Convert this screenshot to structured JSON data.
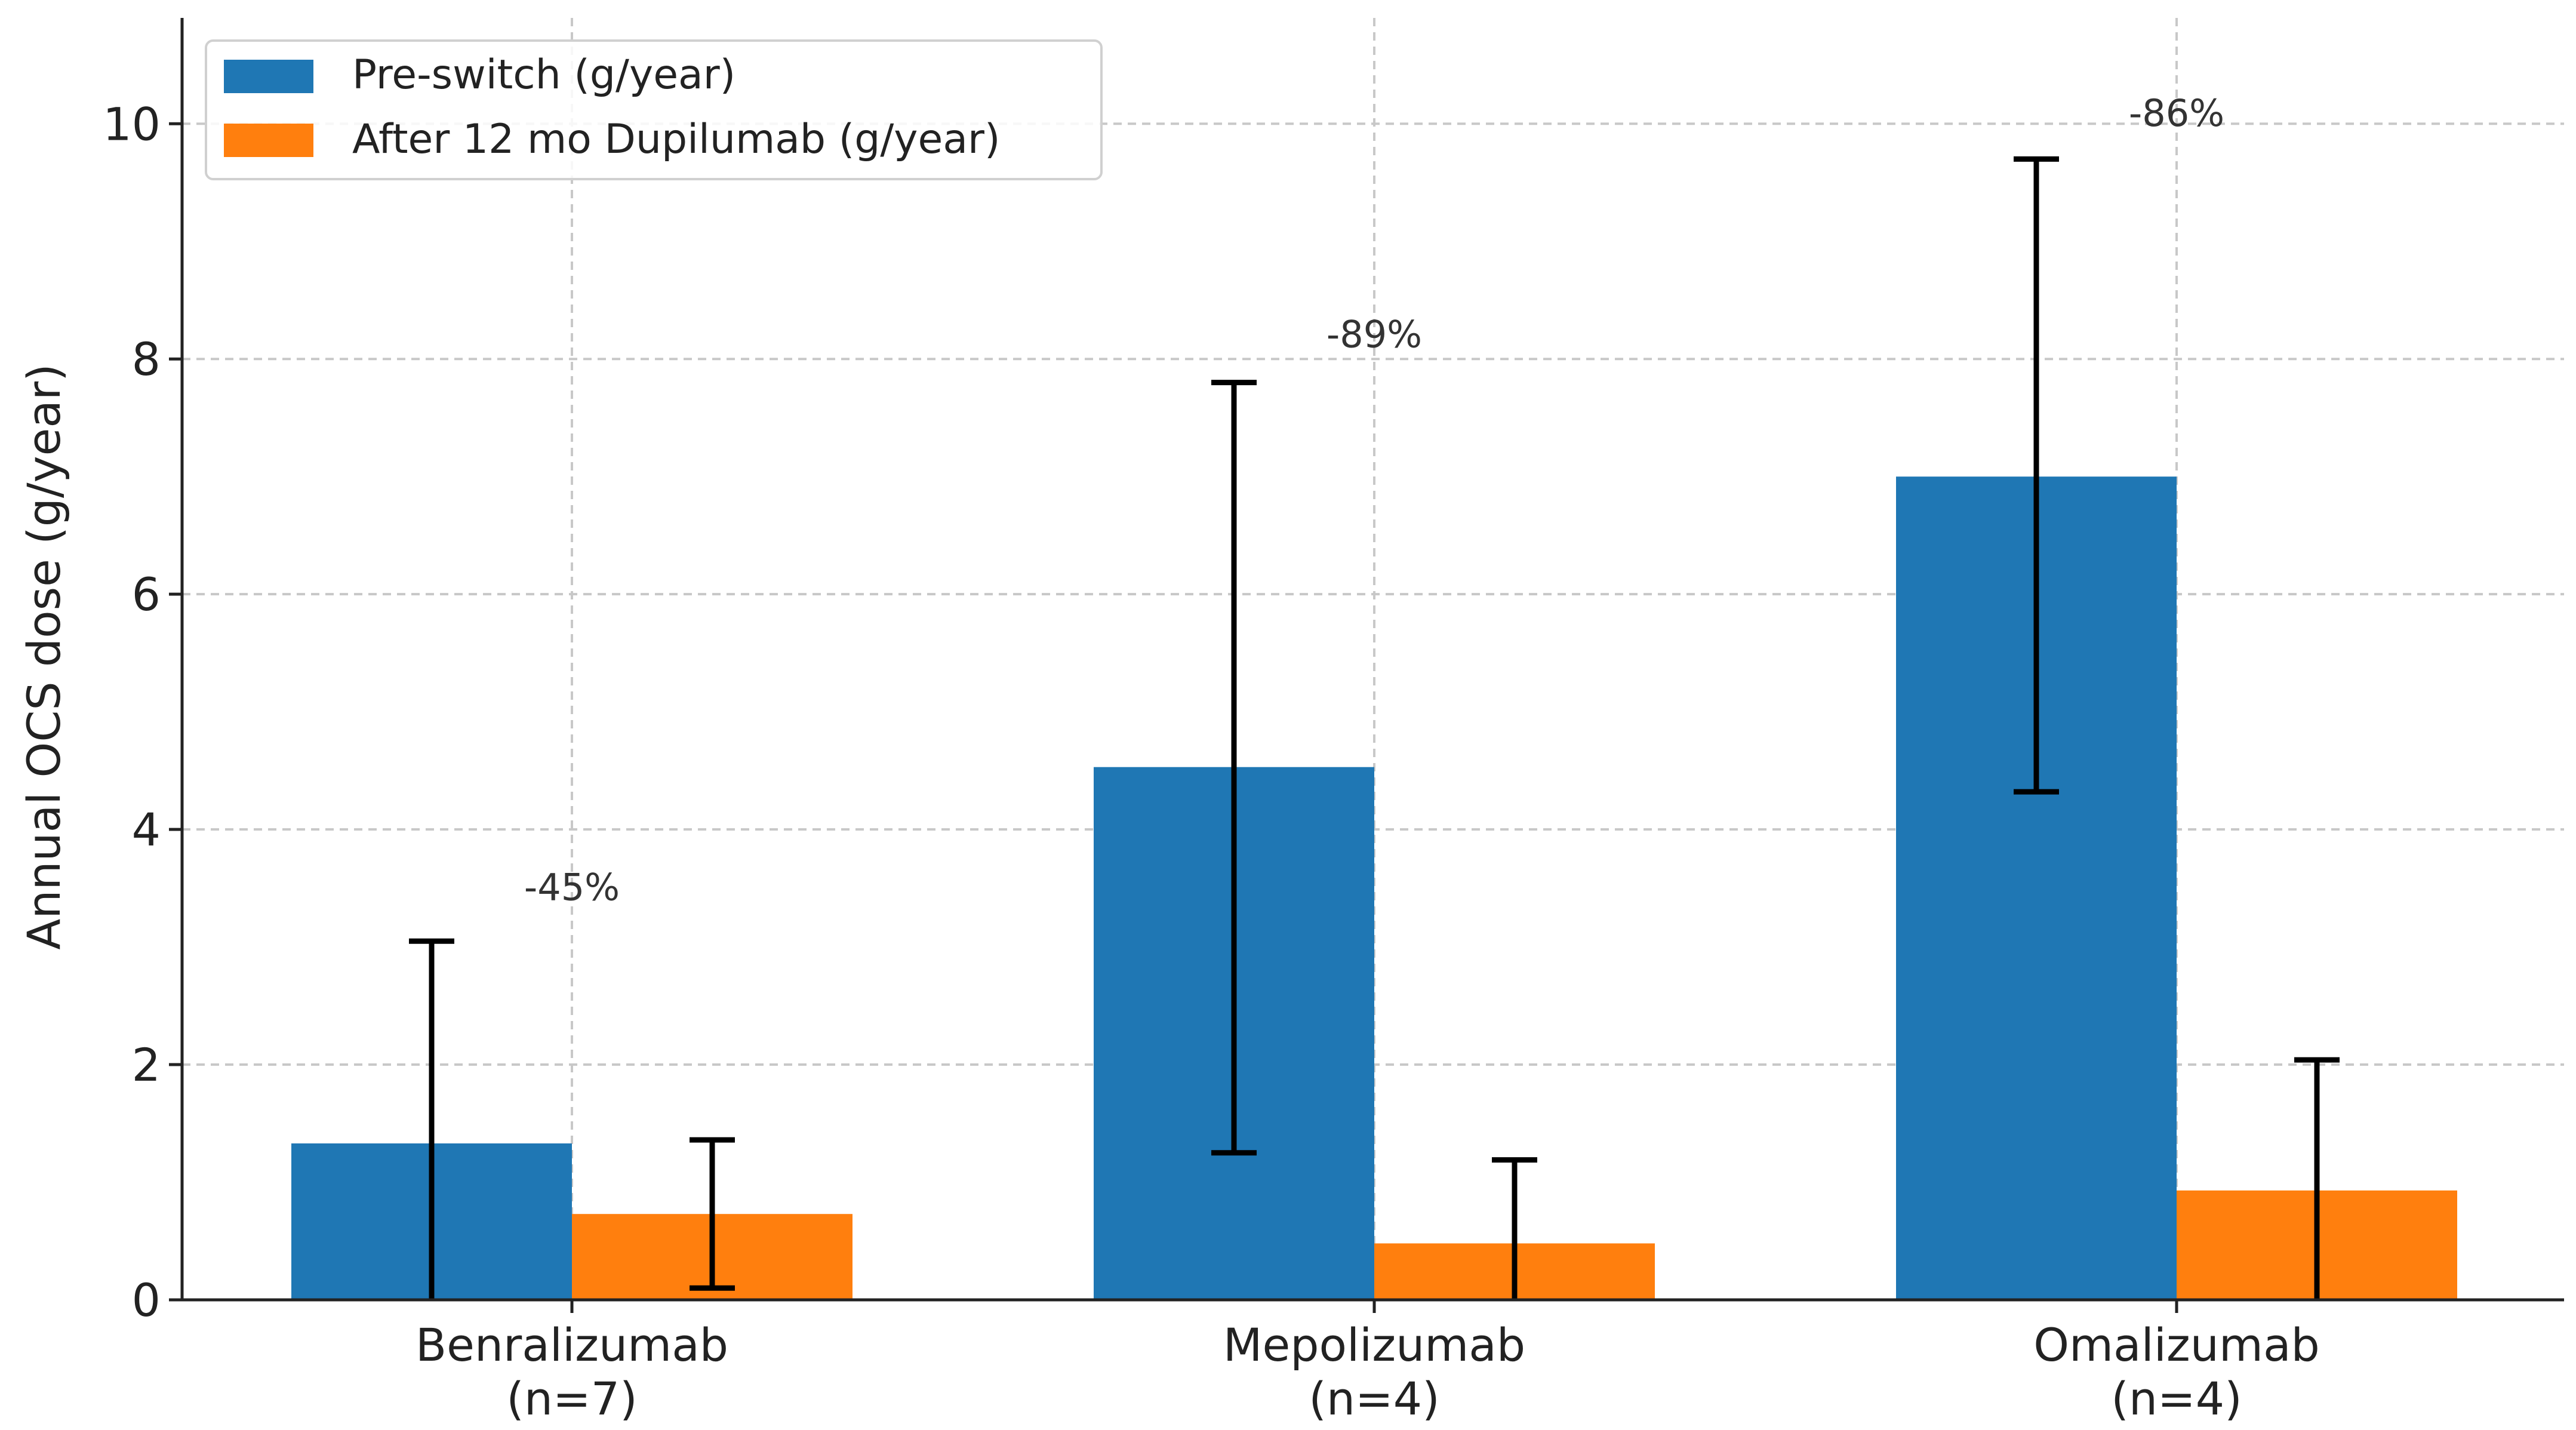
{
  "chart_data": {
    "type": "bar",
    "title": "",
    "xlabel": "",
    "ylabel": "Annual OCS dose (g/year)",
    "ylim": [
      0,
      10.9
    ],
    "yticks": [
      0,
      2,
      4,
      6,
      8,
      10
    ],
    "grid": true,
    "legend_position": "top-left",
    "categories": [
      [
        "Benralizumab",
        "(n=7)"
      ],
      [
        "Mepolizumab",
        "(n=4)"
      ],
      [
        "Omalizumab",
        "(n=4)"
      ]
    ],
    "series": [
      {
        "name": "Pre-switch (g/year)",
        "color": "#1f77b4",
        "values": [
          1.33,
          4.53,
          7.0
        ],
        "error_low": [
          0.0,
          1.25,
          4.32
        ],
        "error_high": [
          3.05,
          7.8,
          9.7
        ]
      },
      {
        "name": "After 12 mo Dupilumab (g/year)",
        "color": "#ff7f0e",
        "values": [
          0.73,
          0.48,
          0.93
        ],
        "error_low": [
          0.1,
          0.0,
          0.0
        ],
        "error_high": [
          1.36,
          1.19,
          2.04
        ]
      }
    ],
    "annotations": [
      {
        "text": "-45%",
        "category_index": 0,
        "y": 3.4
      },
      {
        "text": "-89%",
        "category_index": 1,
        "y": 8.1
      },
      {
        "text": "-86%",
        "category_index": 2,
        "y": 9.98
      }
    ]
  }
}
